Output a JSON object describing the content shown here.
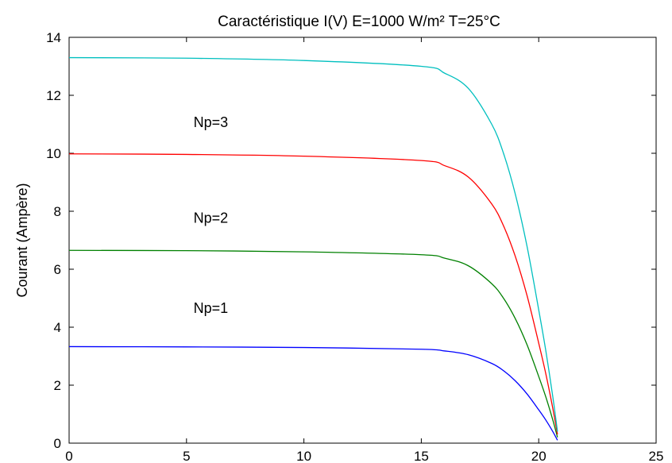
{
  "chart_data": {
    "type": "line",
    "title": "Caractéristique I(V) E=1000 W/m² T=25°C",
    "xlabel": "",
    "ylabel": "Courant (Ampère)",
    "xlim": [
      0,
      25
    ],
    "ylim": [
      0,
      14
    ],
    "xticks": [
      0,
      5,
      10,
      15,
      20,
      25
    ],
    "yticks": [
      0,
      2,
      4,
      6,
      8,
      10,
      12,
      14
    ],
    "grid": false,
    "colors": {
      "cyan": "#00bfbf",
      "red": "#ff0000",
      "green": "#008000",
      "blue": "#0000ff"
    },
    "series": [
      {
        "color": "#0000ff",
        "isc": 3.33,
        "voc": 20.8,
        "x": [
          0,
          5,
          10,
          15,
          16,
          17,
          18,
          18.5,
          19,
          19.5,
          20,
          20.3,
          20.6,
          20.8
        ],
        "y": [
          3.33,
          3.32,
          3.3,
          3.24,
          3.18,
          3.05,
          2.75,
          2.5,
          2.15,
          1.7,
          1.15,
          0.8,
          0.4,
          0.1
        ]
      },
      {
        "color": "#008000",
        "isc": 6.65,
        "voc": 20.8,
        "x": [
          0,
          5,
          10,
          15,
          16,
          17,
          18,
          18.5,
          19,
          19.5,
          20,
          20.3,
          20.6,
          20.8
        ],
        "y": [
          6.65,
          6.64,
          6.6,
          6.5,
          6.38,
          6.12,
          5.5,
          5.0,
          4.3,
          3.4,
          2.3,
          1.6,
          0.8,
          0.2
        ]
      },
      {
        "color": "#ff0000",
        "isc": 9.98,
        "voc": 20.8,
        "x": [
          0,
          5,
          10,
          15,
          16,
          17,
          18,
          18.5,
          19,
          19.5,
          20,
          20.3,
          20.6,
          20.8
        ],
        "y": [
          9.98,
          9.96,
          9.9,
          9.75,
          9.57,
          9.18,
          8.25,
          7.5,
          6.45,
          5.1,
          3.45,
          2.4,
          1.2,
          0.3
        ]
      },
      {
        "color": "#00bfbf",
        "isc": 13.3,
        "voc": 20.8,
        "x": [
          0,
          5,
          10,
          15,
          16,
          17,
          18,
          18.5,
          19,
          19.5,
          20,
          20.3,
          20.6,
          20.8
        ],
        "y": [
          13.3,
          13.28,
          13.2,
          13.0,
          12.76,
          12.24,
          11.0,
          10.0,
          8.6,
          6.8,
          4.6,
          3.2,
          1.6,
          0.4
        ]
      }
    ],
    "annotations": [
      {
        "text": "Np=3",
        "x": 5.3,
        "y": 10.9
      },
      {
        "text": "Np=2",
        "x": 5.3,
        "y": 7.6
      },
      {
        "text": "Np=1",
        "x": 5.3,
        "y": 4.5
      }
    ]
  }
}
